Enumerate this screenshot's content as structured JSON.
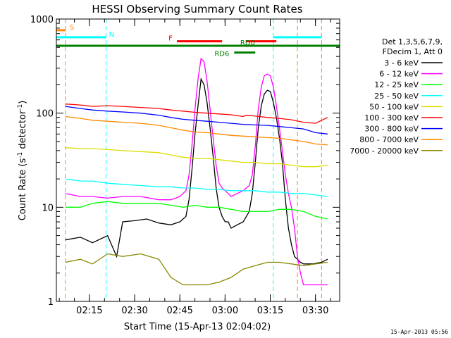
{
  "chart_data": {
    "type": "line",
    "title": "HESSI Observing Summary Count Rates",
    "xlabel": "Start Time (15-Apr-13 02:04:02)",
    "ylabel_main": "Count Rate (s",
    "ylabel_sup": "-1",
    "ylabel_mid": " detector",
    "ylabel_sup2": "-1",
    "ylabel_end": ")",
    "x_ticks": [
      "02:15",
      "02:30",
      "02:45",
      "03:00",
      "03:15",
      "03:30"
    ],
    "y_ticks": [
      "1",
      "10",
      "100",
      "1000"
    ],
    "yscale": "log",
    "ylim": [
      1,
      1000
    ],
    "xlim_minutes": [
      0,
      94
    ],
    "legend": {
      "placement": "right",
      "header1": "Det 1,3,5,6,7,9,",
      "header2": "FDecim 1, Att 0"
    },
    "series": [
      {
        "name": "3 - 6 keV",
        "color": "#000000",
        "x": [
          3,
          8,
          12,
          17,
          20,
          22,
          26,
          30,
          34,
          38,
          41,
          43,
          44,
          45,
          46,
          47,
          48,
          49,
          50,
          51,
          52,
          53,
          54,
          55,
          56,
          57,
          58,
          60,
          62,
          64,
          65,
          66,
          67,
          68,
          69,
          70,
          71,
          72,
          73,
          74,
          75,
          76,
          77,
          78,
          79,
          80,
          81,
          82,
          85,
          88,
          90
        ],
        "y": [
          4.5,
          4.8,
          4.2,
          5.0,
          3.0,
          7.0,
          7.2,
          7.5,
          6.8,
          6.5,
          7.0,
          8,
          12,
          25,
          60,
          120,
          230,
          200,
          130,
          70,
          35,
          16,
          10,
          8,
          7,
          7,
          6,
          6.5,
          7,
          9,
          14,
          30,
          70,
          120,
          160,
          175,
          170,
          130,
          90,
          55,
          30,
          12,
          6,
          4,
          3,
          2.8,
          2.6,
          2.5,
          2.5,
          2.6,
          2.8
        ]
      },
      {
        "name": "6 - 12 keV",
        "color": "#ff00ff",
        "x": [
          3,
          8,
          12,
          17,
          22,
          28,
          34,
          38,
          41,
          43,
          44,
          45,
          46,
          47,
          48,
          49,
          50,
          51,
          52,
          53,
          54,
          55,
          56,
          57,
          58,
          60,
          62,
          64,
          65,
          66,
          67,
          68,
          69,
          70,
          71,
          72,
          73,
          74,
          75,
          76,
          77,
          78,
          79,
          80,
          81,
          82,
          85,
          88,
          90
        ],
        "y": [
          14,
          13,
          13,
          12.5,
          13,
          13,
          12,
          12,
          13,
          15,
          22,
          45,
          110,
          230,
          380,
          350,
          220,
          110,
          55,
          28,
          18,
          16,
          15,
          14,
          13,
          14,
          15,
          17,
          22,
          45,
          110,
          190,
          250,
          260,
          250,
          190,
          120,
          70,
          40,
          22,
          14,
          10,
          6,
          3,
          2,
          1.5,
          1.5,
          1.5,
          1.5
        ]
      },
      {
        "name": "12 - 25 keV",
        "color": "#00ff00",
        "x": [
          3,
          8,
          12,
          17,
          22,
          28,
          34,
          38,
          42,
          46,
          50,
          54,
          58,
          62,
          66,
          70,
          74,
          78,
          82,
          86,
          90
        ],
        "y": [
          10,
          10,
          11,
          11.5,
          11,
          11,
          11,
          10.5,
          10,
          10.5,
          10,
          10,
          9.5,
          9,
          9,
          9,
          9.5,
          9.5,
          9,
          8,
          7.5
        ]
      },
      {
        "name": "25 - 50 keV",
        "color": "#00ffff",
        "x": [
          3,
          8,
          12,
          17,
          22,
          28,
          34,
          38,
          42,
          46,
          50,
          54,
          58,
          62,
          66,
          70,
          74,
          78,
          82,
          86,
          90
        ],
        "y": [
          20,
          19,
          19,
          18,
          17.5,
          17,
          16.5,
          16.5,
          16,
          16,
          15.5,
          15.5,
          15,
          15,
          15,
          14.5,
          14.5,
          14,
          14,
          13.5,
          13
        ]
      },
      {
        "name": "50 - 100 keV",
        "color": "#dddd00",
        "x": [
          3,
          8,
          12,
          17,
          22,
          28,
          34,
          38,
          42,
          46,
          50,
          54,
          58,
          62,
          66,
          70,
          74,
          78,
          82,
          86,
          90
        ],
        "y": [
          43,
          42,
          42,
          41,
          40,
          39,
          38,
          36,
          34,
          33,
          33,
          32,
          31,
          30,
          30,
          29,
          29,
          28,
          27,
          27,
          28
        ]
      },
      {
        "name": "100 - 300 keV",
        "color": "#ff0000",
        "x": [
          3,
          8,
          12,
          17,
          22,
          28,
          34,
          38,
          42,
          46,
          50,
          54,
          58,
          62,
          63,
          66,
          70,
          74,
          78,
          82,
          86,
          90
        ],
        "y": [
          125,
          122,
          118,
          120,
          118,
          115,
          112,
          108,
          105,
          102,
          100,
          98,
          96,
          92,
          95,
          93,
          90,
          88,
          85,
          80,
          78,
          90
        ]
      },
      {
        "name": "300 - 800 keV",
        "color": "#0000ff",
        "x": [
          3,
          8,
          12,
          17,
          22,
          28,
          34,
          38,
          42,
          46,
          50,
          54,
          58,
          62,
          66,
          70,
          74,
          78,
          82,
          86,
          90
        ],
        "y": [
          118,
          112,
          108,
          105,
          103,
          100,
          95,
          90,
          86,
          84,
          82,
          80,
          78,
          76,
          75,
          74,
          72,
          70,
          68,
          62,
          60
        ]
      },
      {
        "name": "800 - 7000 keV",
        "color": "#ff8800",
        "x": [
          3,
          8,
          12,
          17,
          22,
          28,
          34,
          38,
          42,
          46,
          50,
          54,
          58,
          62,
          66,
          70,
          74,
          78,
          82,
          86,
          90
        ],
        "y": [
          92,
          88,
          84,
          82,
          80,
          78,
          74,
          70,
          66,
          63,
          62,
          60,
          58,
          57,
          56,
          55,
          54,
          52,
          50,
          47,
          46
        ]
      },
      {
        "name": "7000 - 20000 keV",
        "color": "#888800",
        "x": [
          3,
          8,
          12,
          17,
          22,
          28,
          34,
          38,
          42,
          46,
          50,
          54,
          58,
          62,
          66,
          70,
          74,
          78,
          82,
          86,
          90
        ],
        "y": [
          2.6,
          2.8,
          2.5,
          3.2,
          3.0,
          3.2,
          2.8,
          1.8,
          1.5,
          1.5,
          1.5,
          1.6,
          1.8,
          2.2,
          2.4,
          2.6,
          2.6,
          2.5,
          2.4,
          2.5,
          2.6
        ]
      }
    ],
    "flags": [
      {
        "label": "S",
        "color": "#ff8800",
        "segments": [
          [
            0,
            3
          ]
        ],
        "level": 760
      },
      {
        "label": "N",
        "color": "#00ffff",
        "segments": [
          [
            0,
            16.5
          ],
          [
            72,
            88
          ]
        ],
        "level": 640
      },
      {
        "label": "F",
        "color": "#ff0000",
        "segments": [
          [
            40,
            55
          ],
          [
            63,
            73
          ]
        ],
        "level": 580
      },
      {
        "label": "RD0",
        "color": "#008000",
        "segments": [
          [
            0,
            94
          ]
        ],
        "level": 520
      },
      {
        "label": "RD6",
        "color": "#008000",
        "segments": [
          [
            59,
            66
          ]
        ],
        "level": 440
      }
    ],
    "vlines": [
      {
        "x": 3,
        "color": "#ff8800"
      },
      {
        "x": 16.5,
        "color": "#00ffff"
      },
      {
        "x": 72,
        "color": "#00ffff"
      },
      {
        "x": 80,
        "color": "#ff8800"
      },
      {
        "x": 88,
        "color": "#ff8800"
      }
    ],
    "footer_date": "15-Apr-2013 05:56"
  }
}
